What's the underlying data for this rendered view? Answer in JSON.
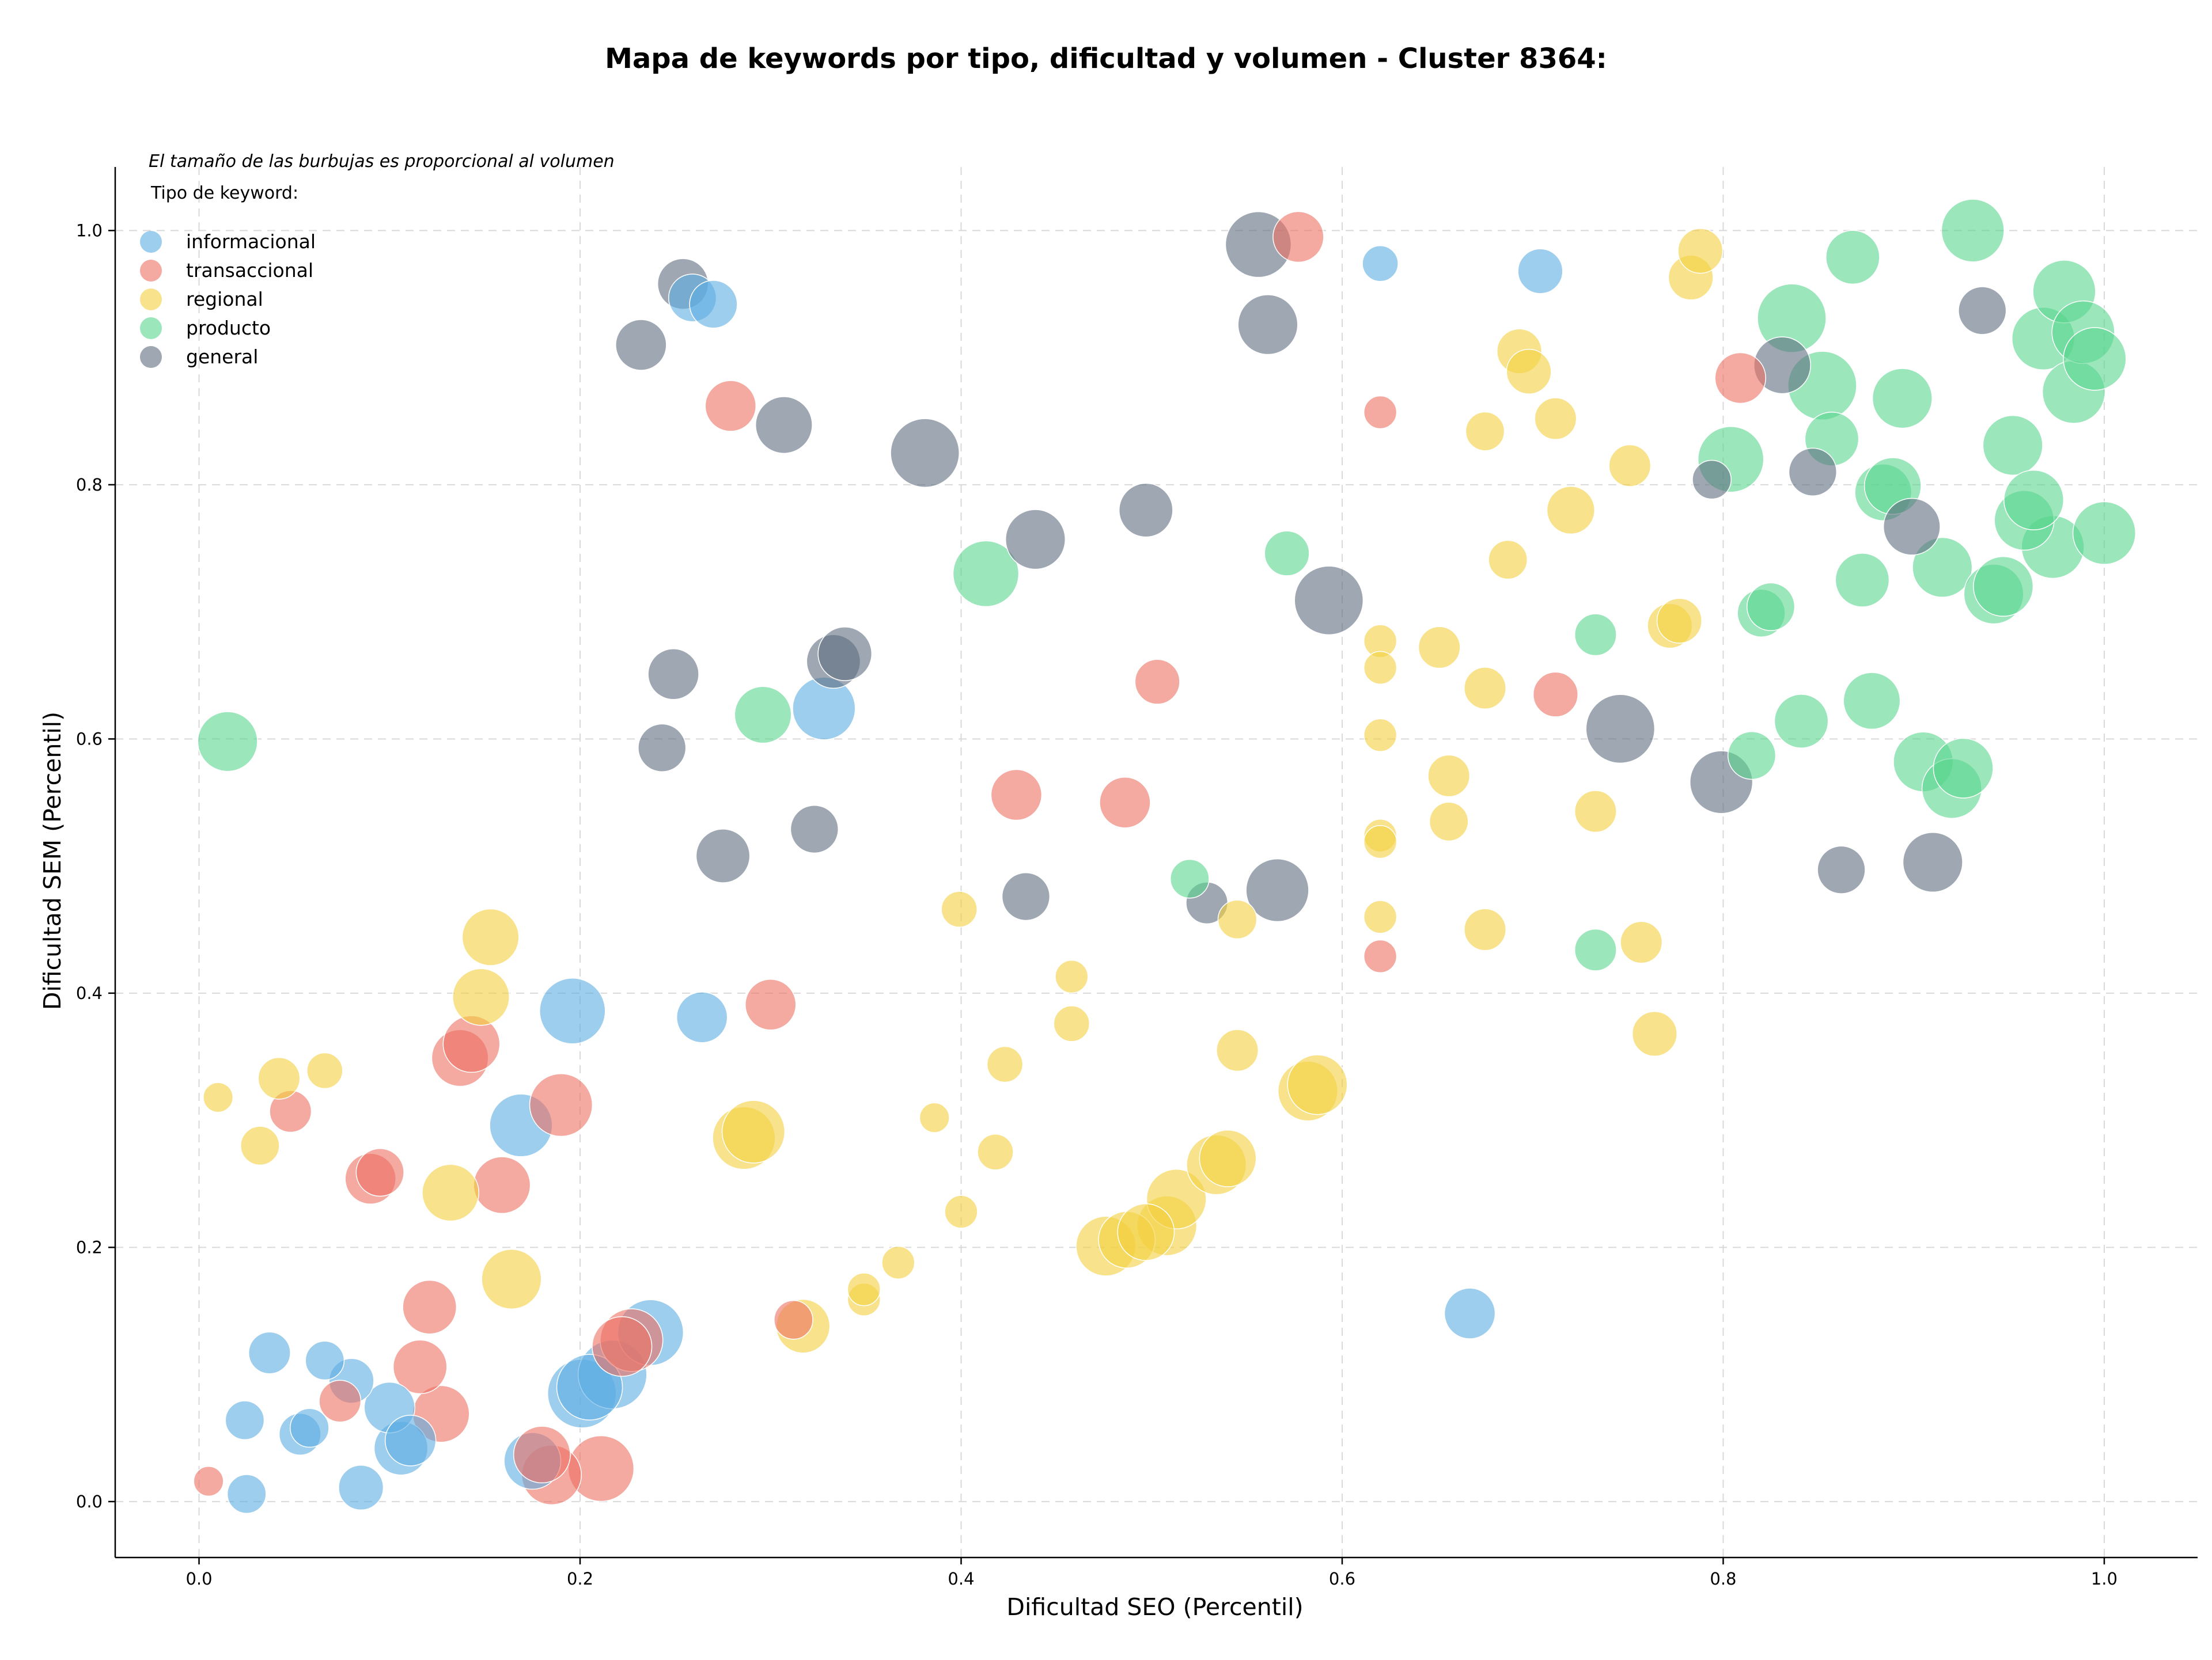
{
  "chart_data": {
    "type": "scatter",
    "title": "Mapa de keywords por tipo, dificultad y volumen - Cluster 8364:",
    "xlabel": "Dificultad SEO (Percentil)",
    "ylabel": "Dificultad SEM (Percentil)",
    "annotation": "El tamaño de las burbujas es proporcional al volumen",
    "legend_title": "Tipo de keyword:",
    "legend_placement": "top-left",
    "xlim": [
      -0.044,
      1.049
    ],
    "ylim": [
      -0.044,
      1.05
    ],
    "x_ticks": [
      "0.0",
      "0.2",
      "0.4",
      "0.6",
      "0.8",
      "1.0"
    ],
    "y_ticks": [
      "0.0",
      "0.2",
      "0.4",
      "0.6",
      "0.8",
      "1.0"
    ],
    "grid": true,
    "series": [
      {
        "name": "informacional",
        "color": "#5dade2",
        "points": [
          {
            "x": 0.025,
            "y": 0.006,
            "size": 0.3
          },
          {
            "x": 0.024,
            "y": 0.064,
            "size": 0.3
          },
          {
            "x": 0.037,
            "y": 0.117,
            "size": 0.35
          },
          {
            "x": 0.053,
            "y": 0.053,
            "size": 0.35
          },
          {
            "x": 0.058,
            "y": 0.058,
            "size": 0.3
          },
          {
            "x": 0.066,
            "y": 0.111,
            "size": 0.3
          },
          {
            "x": 0.08,
            "y": 0.095,
            "size": 0.4
          },
          {
            "x": 0.085,
            "y": 0.011,
            "size": 0.4
          },
          {
            "x": 0.1,
            "y": 0.074,
            "size": 0.5
          },
          {
            "x": 0.106,
            "y": 0.042,
            "size": 0.55
          },
          {
            "x": 0.111,
            "y": 0.048,
            "size": 0.5
          },
          {
            "x": 0.169,
            "y": 0.296,
            "size": 0.7
          },
          {
            "x": 0.175,
            "y": 0.032,
            "size": 0.6
          },
          {
            "x": 0.196,
            "y": 0.386,
            "size": 0.75
          },
          {
            "x": 0.201,
            "y": 0.085,
            "size": 0.8
          },
          {
            "x": 0.205,
            "y": 0.09,
            "size": 0.75
          },
          {
            "x": 0.217,
            "y": 0.1,
            "size": 0.8
          },
          {
            "x": 0.237,
            "y": 0.133,
            "size": 0.75
          },
          {
            "x": 0.264,
            "y": 0.381,
            "size": 0.5
          },
          {
            "x": 0.259,
            "y": 0.947,
            "size": 0.45
          },
          {
            "x": 0.27,
            "y": 0.942,
            "size": 0.45
          },
          {
            "x": 0.328,
            "y": 0.624,
            "size": 0.7
          },
          {
            "x": 0.62,
            "y": 0.974,
            "size": 0.25
          },
          {
            "x": 0.704,
            "y": 0.968,
            "size": 0.4
          },
          {
            "x": 0.667,
            "y": 0.148,
            "size": 0.5
          }
        ]
      },
      {
        "name": "transaccional",
        "color": "#ec7063",
        "points": [
          {
            "x": 0.005,
            "y": 0.016,
            "size": 0.15
          },
          {
            "x": 0.048,
            "y": 0.307,
            "size": 0.35
          },
          {
            "x": 0.074,
            "y": 0.079,
            "size": 0.35
          },
          {
            "x": 0.09,
            "y": 0.254,
            "size": 0.5
          },
          {
            "x": 0.095,
            "y": 0.259,
            "size": 0.45
          },
          {
            "x": 0.116,
            "y": 0.106,
            "size": 0.55
          },
          {
            "x": 0.121,
            "y": 0.153,
            "size": 0.55
          },
          {
            "x": 0.127,
            "y": 0.069,
            "size": 0.6
          },
          {
            "x": 0.137,
            "y": 0.349,
            "size": 0.6
          },
          {
            "x": 0.143,
            "y": 0.36,
            "size": 0.6
          },
          {
            "x": 0.159,
            "y": 0.249,
            "size": 0.6
          },
          {
            "x": 0.19,
            "y": 0.312,
            "size": 0.7
          },
          {
            "x": 0.18,
            "y": 0.037,
            "size": 0.6
          },
          {
            "x": 0.185,
            "y": 0.021,
            "size": 0.65
          },
          {
            "x": 0.211,
            "y": 0.026,
            "size": 0.75
          },
          {
            "x": 0.222,
            "y": 0.122,
            "size": 0.65
          },
          {
            "x": 0.227,
            "y": 0.127,
            "size": 0.7
          },
          {
            "x": 0.279,
            "y": 0.862,
            "size": 0.5
          },
          {
            "x": 0.3,
            "y": 0.391,
            "size": 0.5
          },
          {
            "x": 0.312,
            "y": 0.143,
            "size": 0.3
          },
          {
            "x": 0.429,
            "y": 0.556,
            "size": 0.5
          },
          {
            "x": 0.486,
            "y": 0.55,
            "size": 0.5
          },
          {
            "x": 0.503,
            "y": 0.645,
            "size": 0.4
          },
          {
            "x": 0.577,
            "y": 0.995,
            "size": 0.5
          },
          {
            "x": 0.62,
            "y": 0.857,
            "size": 0.2
          },
          {
            "x": 0.62,
            "y": 0.429,
            "size": 0.2
          },
          {
            "x": 0.712,
            "y": 0.635,
            "size": 0.4
          },
          {
            "x": 0.809,
            "y": 0.884,
            "size": 0.5
          }
        ]
      },
      {
        "name": "regional",
        "color": "#f4d03f",
        "points": [
          {
            "x": 0.01,
            "y": 0.318,
            "size": 0.15
          },
          {
            "x": 0.032,
            "y": 0.28,
            "size": 0.3
          },
          {
            "x": 0.042,
            "y": 0.333,
            "size": 0.35
          },
          {
            "x": 0.066,
            "y": 0.339,
            "size": 0.25
          },
          {
            "x": 0.132,
            "y": 0.243,
            "size": 0.6
          },
          {
            "x": 0.148,
            "y": 0.397,
            "size": 0.6
          },
          {
            "x": 0.153,
            "y": 0.444,
            "size": 0.6
          },
          {
            "x": 0.164,
            "y": 0.175,
            "size": 0.65
          },
          {
            "x": 0.286,
            "y": 0.286,
            "size": 0.7
          },
          {
            "x": 0.291,
            "y": 0.291,
            "size": 0.7
          },
          {
            "x": 0.317,
            "y": 0.138,
            "size": 0.55
          },
          {
            "x": 0.349,
            "y": 0.159,
            "size": 0.2
          },
          {
            "x": 0.349,
            "y": 0.167,
            "size": 0.2
          },
          {
            "x": 0.367,
            "y": 0.188,
            "size": 0.2
          },
          {
            "x": 0.386,
            "y": 0.302,
            "size": 0.15
          },
          {
            "x": 0.399,
            "y": 0.466,
            "size": 0.25
          },
          {
            "x": 0.4,
            "y": 0.228,
            "size": 0.2
          },
          {
            "x": 0.418,
            "y": 0.275,
            "size": 0.25
          },
          {
            "x": 0.423,
            "y": 0.344,
            "size": 0.25
          },
          {
            "x": 0.458,
            "y": 0.376,
            "size": 0.25
          },
          {
            "x": 0.458,
            "y": 0.413,
            "size": 0.2
          },
          {
            "x": 0.476,
            "y": 0.201,
            "size": 0.65
          },
          {
            "x": 0.487,
            "y": 0.206,
            "size": 0.6
          },
          {
            "x": 0.497,
            "y": 0.212,
            "size": 0.6
          },
          {
            "x": 0.508,
            "y": 0.217,
            "size": 0.65
          },
          {
            "x": 0.513,
            "y": 0.238,
            "size": 0.65
          },
          {
            "x": 0.534,
            "y": 0.265,
            "size": 0.65
          },
          {
            "x": 0.54,
            "y": 0.27,
            "size": 0.6
          },
          {
            "x": 0.545,
            "y": 0.355,
            "size": 0.35
          },
          {
            "x": 0.545,
            "y": 0.458,
            "size": 0.3
          },
          {
            "x": 0.582,
            "y": 0.323,
            "size": 0.65
          },
          {
            "x": 0.587,
            "y": 0.328,
            "size": 0.65
          },
          {
            "x": 0.62,
            "y": 0.677,
            "size": 0.2
          },
          {
            "x": 0.62,
            "y": 0.656,
            "size": 0.2
          },
          {
            "x": 0.62,
            "y": 0.603,
            "size": 0.2
          },
          {
            "x": 0.62,
            "y": 0.524,
            "size": 0.2
          },
          {
            "x": 0.62,
            "y": 0.519,
            "size": 0.2
          },
          {
            "x": 0.62,
            "y": 0.46,
            "size": 0.2
          },
          {
            "x": 0.651,
            "y": 0.672,
            "size": 0.35
          },
          {
            "x": 0.656,
            "y": 0.571,
            "size": 0.35
          },
          {
            "x": 0.656,
            "y": 0.535,
            "size": 0.3
          },
          {
            "x": 0.675,
            "y": 0.842,
            "size": 0.3
          },
          {
            "x": 0.675,
            "y": 0.64,
            "size": 0.35
          },
          {
            "x": 0.675,
            "y": 0.45,
            "size": 0.35
          },
          {
            "x": 0.687,
            "y": 0.741,
            "size": 0.3
          },
          {
            "x": 0.693,
            "y": 0.905,
            "size": 0.4
          },
          {
            "x": 0.698,
            "y": 0.889,
            "size": 0.4
          },
          {
            "x": 0.712,
            "y": 0.852,
            "size": 0.35
          },
          {
            "x": 0.72,
            "y": 0.78,
            "size": 0.45
          },
          {
            "x": 0.733,
            "y": 0.543,
            "size": 0.35
          },
          {
            "x": 0.751,
            "y": 0.815,
            "size": 0.35
          },
          {
            "x": 0.757,
            "y": 0.44,
            "size": 0.35
          },
          {
            "x": 0.764,
            "y": 0.368,
            "size": 0.4
          },
          {
            "x": 0.772,
            "y": 0.689,
            "size": 0.4
          },
          {
            "x": 0.777,
            "y": 0.693,
            "size": 0.4
          },
          {
            "x": 0.783,
            "y": 0.963,
            "size": 0.4
          },
          {
            "x": 0.788,
            "y": 0.984,
            "size": 0.4
          }
        ]
      },
      {
        "name": "producto",
        "color": "#58d68d",
        "points": [
          {
            "x": 0.015,
            "y": 0.598,
            "size": 0.65
          },
          {
            "x": 0.296,
            "y": 0.619,
            "size": 0.6
          },
          {
            "x": 0.413,
            "y": 0.73,
            "size": 0.75
          },
          {
            "x": 0.52,
            "y": 0.49,
            "size": 0.3
          },
          {
            "x": 0.571,
            "y": 0.746,
            "size": 0.4
          },
          {
            "x": 0.733,
            "y": 0.682,
            "size": 0.35
          },
          {
            "x": 0.733,
            "y": 0.434,
            "size": 0.35
          },
          {
            "x": 0.804,
            "y": 0.82,
            "size": 0.75
          },
          {
            "x": 0.815,
            "y": 0.587,
            "size": 0.45
          },
          {
            "x": 0.82,
            "y": 0.699,
            "size": 0.45
          },
          {
            "x": 0.825,
            "y": 0.704,
            "size": 0.45
          },
          {
            "x": 0.836,
            "y": 0.931,
            "size": 0.8
          },
          {
            "x": 0.841,
            "y": 0.614,
            "size": 0.55
          },
          {
            "x": 0.852,
            "y": 0.878,
            "size": 0.8
          },
          {
            "x": 0.857,
            "y": 0.836,
            "size": 0.55
          },
          {
            "x": 0.868,
            "y": 0.979,
            "size": 0.55
          },
          {
            "x": 0.873,
            "y": 0.725,
            "size": 0.55
          },
          {
            "x": 0.878,
            "y": 0.63,
            "size": 0.6
          },
          {
            "x": 0.884,
            "y": 0.794,
            "size": 0.6
          },
          {
            "x": 0.889,
            "y": 0.799,
            "size": 0.6
          },
          {
            "x": 0.894,
            "y": 0.868,
            "size": 0.65
          },
          {
            "x": 0.905,
            "y": 0.582,
            "size": 0.65
          },
          {
            "x": 0.915,
            "y": 0.735,
            "size": 0.65
          },
          {
            "x": 0.92,
            "y": 0.561,
            "size": 0.65
          },
          {
            "x": 0.926,
            "y": 0.577,
            "size": 0.65
          },
          {
            "x": 0.931,
            "y": 1.0,
            "size": 0.7
          },
          {
            "x": 0.942,
            "y": 0.714,
            "size": 0.65
          },
          {
            "x": 0.947,
            "y": 0.72,
            "size": 0.65
          },
          {
            "x": 0.952,
            "y": 0.831,
            "size": 0.65
          },
          {
            "x": 0.958,
            "y": 0.772,
            "size": 0.65
          },
          {
            "x": 0.963,
            "y": 0.788,
            "size": 0.65
          },
          {
            "x": 0.968,
            "y": 0.915,
            "size": 0.7
          },
          {
            "x": 0.973,
            "y": 0.751,
            "size": 0.7
          },
          {
            "x": 0.979,
            "y": 0.952,
            "size": 0.7
          },
          {
            "x": 0.984,
            "y": 0.873,
            "size": 0.7
          },
          {
            "x": 0.989,
            "y": 0.92,
            "size": 0.7
          },
          {
            "x": 0.995,
            "y": 0.899,
            "size": 0.7
          },
          {
            "x": 1.0,
            "y": 0.762,
            "size": 0.7
          }
        ]
      },
      {
        "name": "general",
        "color": "#5d6d7e",
        "points": [
          {
            "x": 0.232,
            "y": 0.91,
            "size": 0.5
          },
          {
            "x": 0.243,
            "y": 0.593,
            "size": 0.45
          },
          {
            "x": 0.249,
            "y": 0.651,
            "size": 0.5
          },
          {
            "x": 0.254,
            "y": 0.958,
            "size": 0.5
          },
          {
            "x": 0.275,
            "y": 0.508,
            "size": 0.55
          },
          {
            "x": 0.307,
            "y": 0.847,
            "size": 0.6
          },
          {
            "x": 0.323,
            "y": 0.529,
            "size": 0.45
          },
          {
            "x": 0.333,
            "y": 0.661,
            "size": 0.55
          },
          {
            "x": 0.339,
            "y": 0.667,
            "size": 0.55
          },
          {
            "x": 0.381,
            "y": 0.825,
            "size": 0.8
          },
          {
            "x": 0.434,
            "y": 0.476,
            "size": 0.45
          },
          {
            "x": 0.439,
            "y": 0.757,
            "size": 0.65
          },
          {
            "x": 0.497,
            "y": 0.78,
            "size": 0.55
          },
          {
            "x": 0.529,
            "y": 0.471,
            "size": 0.35
          },
          {
            "x": 0.556,
            "y": 0.989,
            "size": 0.75
          },
          {
            "x": 0.561,
            "y": 0.926,
            "size": 0.65
          },
          {
            "x": 0.566,
            "y": 0.481,
            "size": 0.7
          },
          {
            "x": 0.593,
            "y": 0.709,
            "size": 0.8
          },
          {
            "x": 0.746,
            "y": 0.608,
            "size": 0.8
          },
          {
            "x": 0.794,
            "y": 0.804,
            "size": 0.3
          },
          {
            "x": 0.799,
            "y": 0.566,
            "size": 0.7
          },
          {
            "x": 0.831,
            "y": 0.894,
            "size": 0.6
          },
          {
            "x": 0.847,
            "y": 0.81,
            "size": 0.45
          },
          {
            "x": 0.862,
            "y": 0.497,
            "size": 0.45
          },
          {
            "x": 0.899,
            "y": 0.767,
            "size": 0.6
          },
          {
            "x": 0.91,
            "y": 0.503,
            "size": 0.65
          },
          {
            "x": 0.936,
            "y": 0.937,
            "size": 0.45
          }
        ]
      }
    ]
  }
}
